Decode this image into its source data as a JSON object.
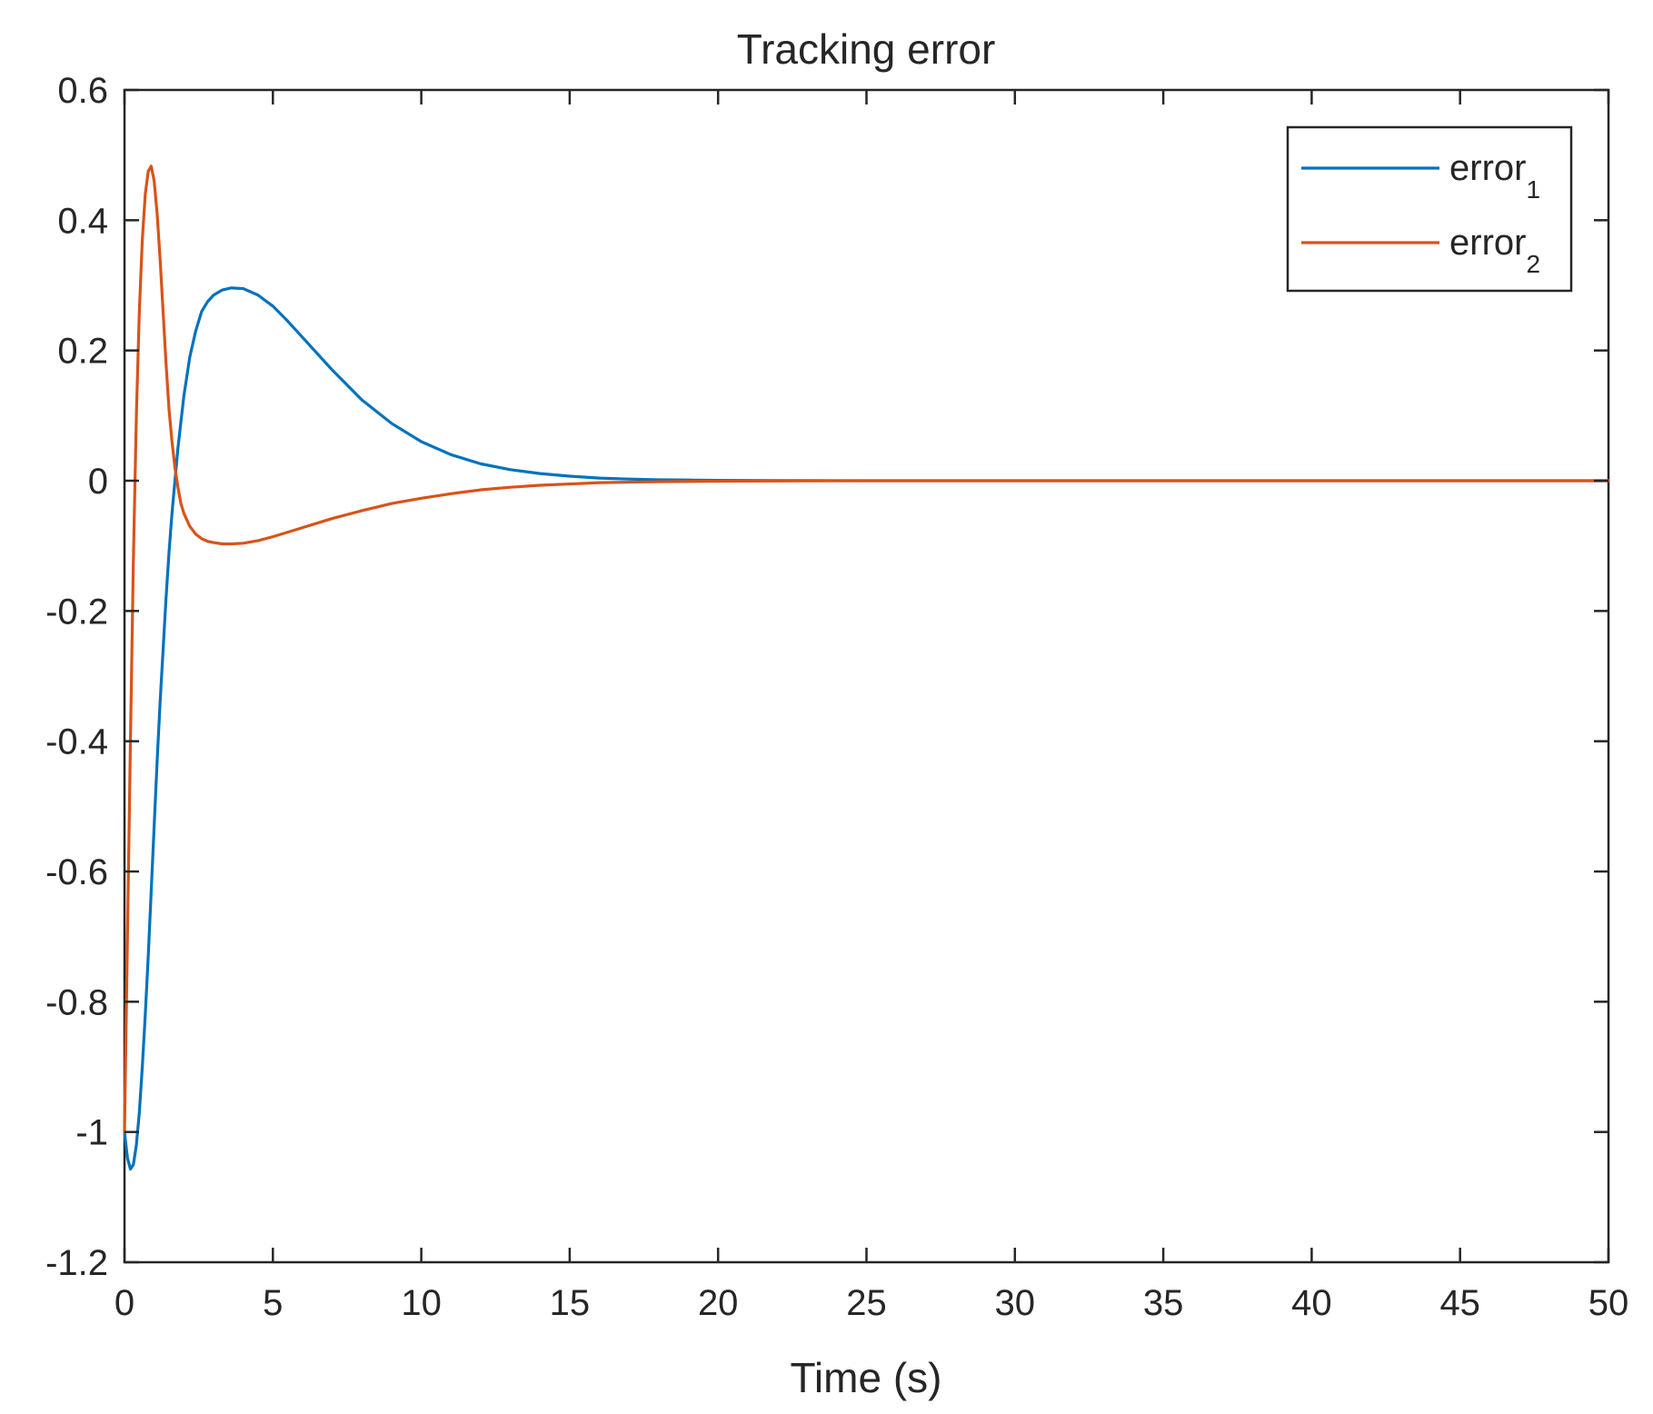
{
  "chart_data": {
    "type": "line",
    "title": "Tracking error",
    "xlabel": "Time (s)",
    "ylabel": "",
    "xlim": [
      0,
      50
    ],
    "ylim": [
      -1.2,
      0.6
    ],
    "xticks": [
      0,
      5,
      10,
      15,
      20,
      25,
      30,
      35,
      40,
      45,
      50
    ],
    "xtick_labels": [
      "0",
      "5",
      "10",
      "15",
      "20",
      "25",
      "30",
      "35",
      "40",
      "45",
      "50"
    ],
    "yticks": [
      -1.2,
      -1,
      -0.8,
      -0.6,
      -0.4,
      -0.2,
      0,
      0.2,
      0.4,
      0.6
    ],
    "ytick_labels": [
      "-1.2",
      "-1",
      "-0.8",
      "-0.6",
      "-0.4",
      "-0.2",
      "0",
      "0.2",
      "0.4",
      "0.6"
    ],
    "grid": false,
    "legend_position": "top-right",
    "series": [
      {
        "base": "error",
        "subscript": "1",
        "color": "#0072BD",
        "x": [
          0,
          0.1,
          0.2,
          0.3,
          0.4,
          0.5,
          0.6,
          0.7,
          0.8,
          0.9,
          1.0,
          1.1,
          1.2,
          1.3,
          1.4,
          1.5,
          1.6,
          1.8,
          2.0,
          2.2,
          2.4,
          2.6,
          2.8,
          3.0,
          3.3,
          3.6,
          4.0,
          4.5,
          5.0,
          5.5,
          6.0,
          7.0,
          8.0,
          9.0,
          10.0,
          11.0,
          12.0,
          13.0,
          14.0,
          15.0,
          16.0,
          17.0,
          18.0,
          19.0,
          20.0,
          22.0,
          25.0,
          30.0,
          35.0,
          40.0,
          45.0,
          50.0
        ],
        "y": [
          -1.0,
          -1.04,
          -1.057,
          -1.05,
          -1.02,
          -0.97,
          -0.9,
          -0.82,
          -0.73,
          -0.63,
          -0.53,
          -0.43,
          -0.34,
          -0.26,
          -0.18,
          -0.11,
          -0.05,
          0.05,
          0.13,
          0.19,
          0.23,
          0.26,
          0.275,
          0.285,
          0.293,
          0.296,
          0.295,
          0.285,
          0.268,
          0.245,
          0.22,
          0.17,
          0.124,
          0.088,
          0.06,
          0.04,
          0.026,
          0.017,
          0.011,
          0.007,
          0.004,
          0.0025,
          0.0015,
          0.001,
          0.0006,
          0.0002,
          0.0,
          0.0,
          0.0,
          0.0,
          0.0,
          0.0
        ]
      },
      {
        "base": "error",
        "subscript": "2",
        "color": "#D95319",
        "x": [
          0,
          0.1,
          0.2,
          0.3,
          0.4,
          0.5,
          0.6,
          0.7,
          0.8,
          0.9,
          1.0,
          1.1,
          1.2,
          1.3,
          1.4,
          1.5,
          1.6,
          1.7,
          1.8,
          1.9,
          2.0,
          2.2,
          2.4,
          2.6,
          2.8,
          3.0,
          3.3,
          3.6,
          4.0,
          4.5,
          5.0,
          6.0,
          7.0,
          8.0,
          9.0,
          10.0,
          11.0,
          12.0,
          13.0,
          14.0,
          15.0,
          16.0,
          18.0,
          20.0,
          25.0,
          30.0,
          35.0,
          40.0,
          45.0,
          50.0
        ],
        "y": [
          -1.0,
          -0.7,
          -0.4,
          -0.12,
          0.1,
          0.26,
          0.37,
          0.44,
          0.475,
          0.483,
          0.46,
          0.41,
          0.34,
          0.26,
          0.18,
          0.11,
          0.06,
          0.02,
          -0.01,
          -0.035,
          -0.05,
          -0.07,
          -0.082,
          -0.089,
          -0.093,
          -0.095,
          -0.097,
          -0.097,
          -0.096,
          -0.092,
          -0.086,
          -0.072,
          -0.058,
          -0.046,
          -0.035,
          -0.027,
          -0.02,
          -0.014,
          -0.01,
          -0.007,
          -0.005,
          -0.003,
          -0.0015,
          -0.0007,
          0.0,
          0.0,
          0.0,
          0.0,
          0.0,
          0.0
        ]
      }
    ]
  }
}
